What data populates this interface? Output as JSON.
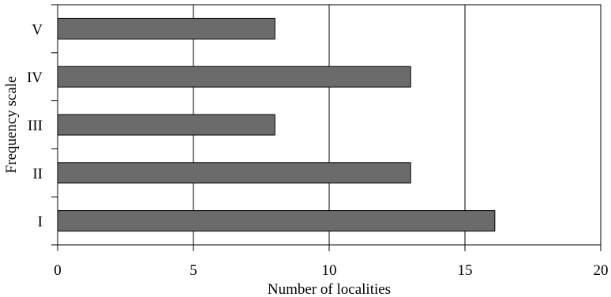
{
  "chart_data": {
    "type": "bar",
    "orientation": "horizontal",
    "categories": [
      "V",
      "IV",
      "III",
      "II",
      "I"
    ],
    "values": [
      8,
      13,
      8,
      13,
      16.1
    ],
    "xlabel": "Number of localities",
    "ylabel": "Frequency scale",
    "xlim": [
      0,
      20
    ],
    "xticks": [
      "0",
      "5",
      "10",
      "15",
      "20"
    ],
    "grid": "vertical",
    "bar_color": "#6b6b6b",
    "legend": "none"
  }
}
